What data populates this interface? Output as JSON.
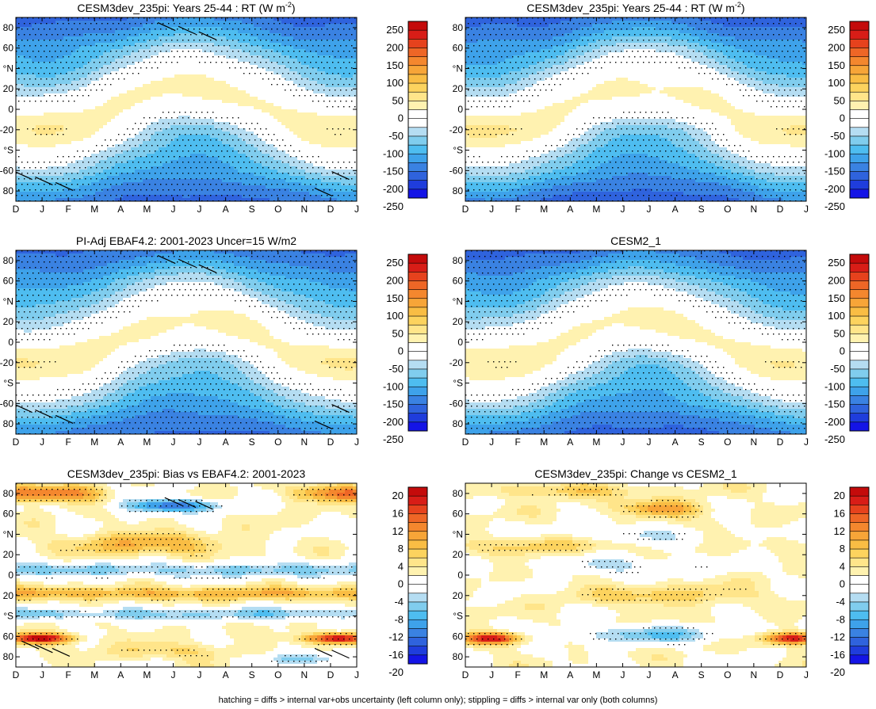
{
  "caption": "hatching = diffs > internal var+obs uncertainty (left column only); stippling = diffs > internal var only (both columns)",
  "colors": {
    "mean_levels": [
      "#1414e6",
      "#1f3ddc",
      "#2f63dd",
      "#3a82e2",
      "#3ea2ea",
      "#4ebdf0",
      "#80cdee",
      "#b5ddf2",
      "#ffffff",
      "#ffffff",
      "#fff2b0",
      "#ffe58a",
      "#fcd35e",
      "#f9bd44",
      "#f7a538",
      "#f4872e",
      "#ee6626",
      "#e6421d",
      "#d81d17",
      "#c40b0b"
    ],
    "diff_levels": [
      "#1414e6",
      "#1f3ddc",
      "#2f63dd",
      "#3a82e2",
      "#3ea2ea",
      "#4ebdf0",
      "#80cdee",
      "#b5ddf2",
      "#ffffff",
      "#ffffff",
      "#fff2b0",
      "#ffe58a",
      "#fcd35e",
      "#f9bd44",
      "#f7a538",
      "#f4872e",
      "#ee6626",
      "#e6421d",
      "#d81d17",
      "#c40b0b"
    ]
  },
  "chart_data": [
    {
      "id": "p1",
      "type": "heatmap",
      "title_main": "CESM3dev_235pi: Years 25-44 : RT (W m",
      "title_sup": "-2",
      "title_end": ")",
      "field": "mean",
      "amp": 1.0,
      "phase": 0,
      "hatch": true,
      "xlabel_ticks": [
        "D",
        "J",
        "F",
        "M",
        "A",
        "M",
        "J",
        "J",
        "A",
        "S",
        "O",
        "N",
        "D",
        "J"
      ],
      "ytick_labels": [
        "80",
        "60",
        "°N",
        "20",
        "0",
        "-20",
        "°S",
        "-60",
        "80"
      ],
      "cbar_labels": [
        "250",
        "200",
        "150",
        "100",
        "50",
        "0",
        "-50",
        "-100",
        "-150",
        "-200",
        "-250"
      ],
      "ylim": [
        -90,
        90
      ],
      "zlim": [
        -275,
        275
      ]
    },
    {
      "id": "p2",
      "type": "heatmap",
      "title_main": "CESM3dev_235pi: Years 25-44 : RT (W m",
      "title_sup": "-2",
      "title_end": ")",
      "field": "mean",
      "amp": 1.03,
      "phase": 1,
      "hatch": false,
      "xlabel_ticks": [
        "D",
        "J",
        "F",
        "M",
        "A",
        "M",
        "J",
        "J",
        "A",
        "S",
        "O",
        "N",
        "D",
        "J"
      ],
      "ytick_labels": [
        "80",
        "60",
        "°N",
        "20",
        "0",
        "-20",
        "°S",
        "-60",
        "80"
      ],
      "cbar_labels": [
        "250",
        "200",
        "150",
        "100",
        "50",
        "0",
        "-50",
        "-100",
        "-150",
        "-200",
        "-250"
      ],
      "ylim": [
        -90,
        90
      ],
      "zlim": [
        -275,
        275
      ]
    },
    {
      "id": "p3",
      "type": "heatmap",
      "title_main": "PI-Adj EBAF4.2: 2001-2023 Uncer=15 W/m2",
      "title_sup": "",
      "title_end": "",
      "field": "mean",
      "amp": 0.98,
      "phase": 2,
      "hatch": true,
      "xlabel_ticks": [
        "D",
        "J",
        "F",
        "M",
        "A",
        "M",
        "J",
        "J",
        "A",
        "S",
        "O",
        "N",
        "D",
        "J"
      ],
      "ytick_labels": [
        "80",
        "60",
        "°N",
        "20",
        "0",
        "-20",
        "°S",
        "-60",
        "80"
      ],
      "cbar_labels": [
        "250",
        "200",
        "150",
        "100",
        "50",
        "0",
        "-50",
        "-100",
        "-150",
        "-200",
        "-250"
      ],
      "ylim": [
        -90,
        90
      ],
      "zlim": [
        -275,
        275
      ]
    },
    {
      "id": "p4",
      "type": "heatmap",
      "title_main": "CESM2_1",
      "title_sup": "",
      "title_end": "",
      "field": "mean",
      "amp": 1.01,
      "phase": 3,
      "hatch": false,
      "xlabel_ticks": [
        "D",
        "J",
        "F",
        "M",
        "A",
        "M",
        "J",
        "J",
        "A",
        "S",
        "O",
        "N",
        "D",
        "J"
      ],
      "ytick_labels": [
        "80",
        "60",
        "°N",
        "20",
        "0",
        "-20",
        "°S",
        "-60",
        "80"
      ],
      "cbar_labels": [
        "250",
        "200",
        "150",
        "100",
        "50",
        "0",
        "-50",
        "-100",
        "-150",
        "-200",
        "-250"
      ],
      "ylim": [
        -90,
        90
      ],
      "zlim": [
        -275,
        275
      ]
    },
    {
      "id": "p5",
      "type": "heatmap",
      "title_main": "CESM3dev_235pi: Bias vs EBAF4.2: 2001-2023",
      "title_sup": "",
      "title_end": "",
      "field": "bias",
      "amp": 1.0,
      "phase": 0,
      "hatch": true,
      "xlabel_ticks": [
        "D",
        "J",
        "F",
        "M",
        "A",
        "M",
        "J",
        "J",
        "A",
        "S",
        "O",
        "N",
        "D",
        "J"
      ],
      "ytick_labels": [
        "80",
        "60",
        "°N",
        "20",
        "0",
        "20",
        "°S",
        "60",
        "80"
      ],
      "cbar_labels": [
        "20",
        "16",
        "12",
        "8",
        "4",
        "0",
        "-4",
        "-8",
        "-12",
        "-16",
        "-20"
      ],
      "ylim": [
        -90,
        90
      ],
      "zlim": [
        -22,
        22
      ]
    },
    {
      "id": "p6",
      "type": "heatmap",
      "title_main": "CESM3dev_235pi: Change vs CESM2_1",
      "title_sup": "",
      "title_end": "",
      "field": "change",
      "amp": 1.0,
      "phase": 0,
      "hatch": false,
      "xlabel_ticks": [
        "D",
        "J",
        "F",
        "M",
        "A",
        "M",
        "J",
        "J",
        "A",
        "S",
        "O",
        "N",
        "D",
        "J"
      ],
      "ytick_labels": [
        "80",
        "60",
        "°N",
        "20",
        "0",
        "20",
        "°S",
        "60",
        "80"
      ],
      "cbar_labels": [
        "20",
        "16",
        "12",
        "8",
        "4",
        "0",
        "-4",
        "-8",
        "-12",
        "-16",
        "-20"
      ],
      "ylim": [
        -90,
        90
      ],
      "zlim": [
        -22,
        22
      ]
    }
  ]
}
